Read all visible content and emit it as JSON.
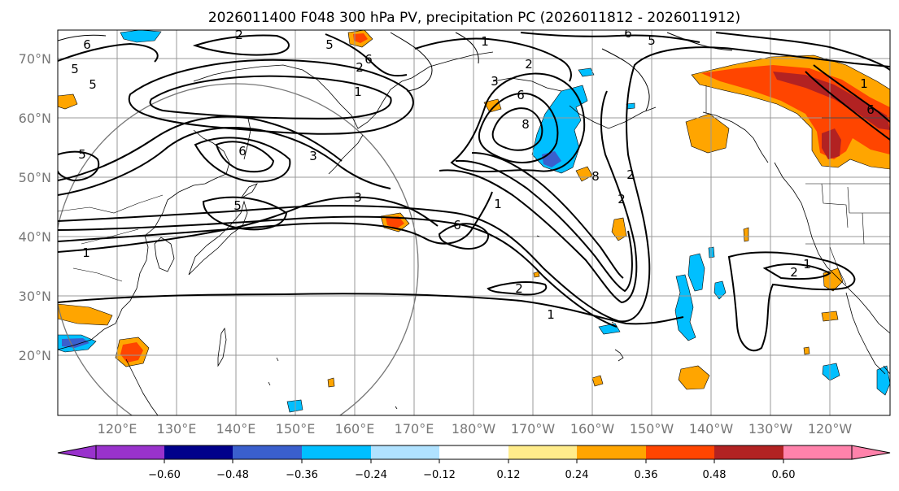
{
  "title": "2026011400 F048 300 hPa PV, precipitation PC (2026011812 - 2026011912)",
  "lat_labels": [
    "70°N",
    "60°N",
    "50°N",
    "40°N",
    "30°N",
    "20°N"
  ],
  "lon_labels": [
    "120°E",
    "130°E",
    "140°E",
    "150°E",
    "160°E",
    "170°E",
    "180°W",
    "170°W",
    "160°W",
    "150°W",
    "140°W",
    "130°W",
    "120°W"
  ],
  "colorbar": {
    "colors": [
      "#9932cc",
      "#00008b",
      "#3a5fcd",
      "#00bfff",
      "#b0e2ff",
      "#ffffff",
      "#ffec8b",
      "#ffa500",
      "#ff4500",
      "#b22222",
      "#ff82ab"
    ],
    "ticks": [
      "−0.60",
      "−0.48",
      "−0.36",
      "−0.24",
      "−0.12",
      "0.12",
      "0.24",
      "0.36",
      "0.48",
      "0.60"
    ]
  },
  "pv_contour_labels": [
    "6",
    "5",
    "5",
    "1",
    "6",
    "5",
    "2",
    "3",
    "6",
    "5",
    "1",
    "2",
    "3",
    "6",
    "6",
    "3",
    "5",
    "6",
    "5",
    "1",
    "2",
    "8",
    "1",
    "2",
    "8",
    "2",
    "1",
    "2",
    "1",
    "2",
    "1",
    "6"
  ],
  "map": {
    "region": "North Pacific",
    "field_contours": "300 hPa PV",
    "shading": "precipitation PC",
    "colors": {
      "grid": "#999999",
      "coast": "#000000",
      "contour": "#000000",
      "circle": "#777777"
    }
  }
}
